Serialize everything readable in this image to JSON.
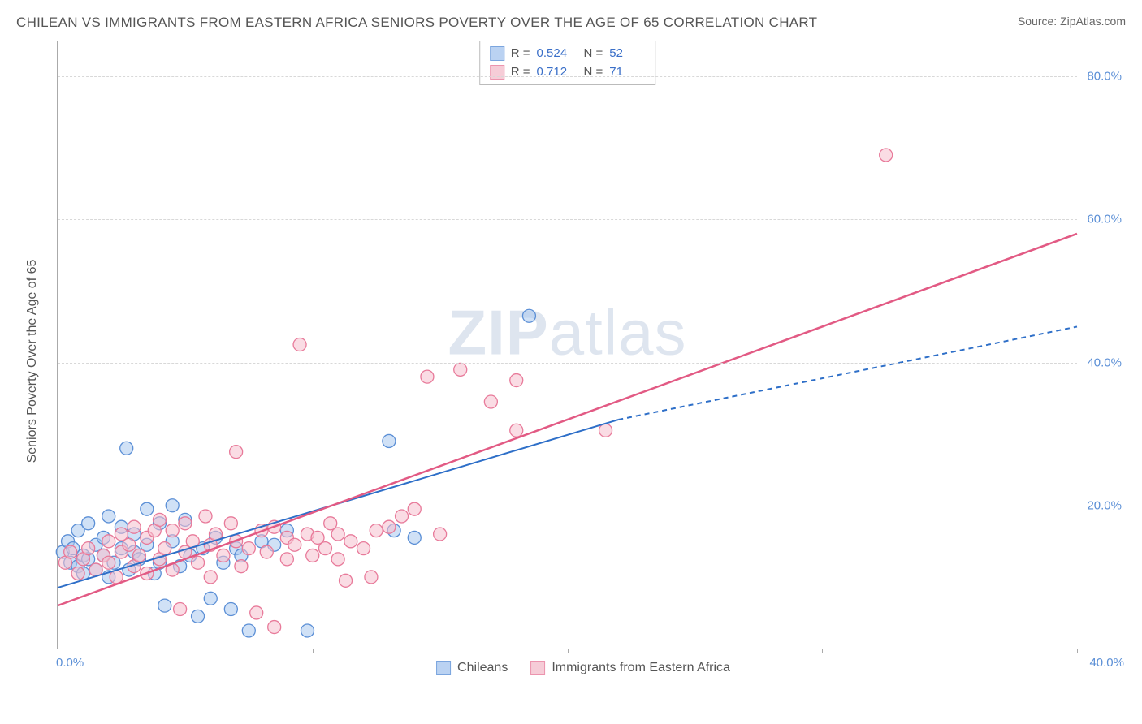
{
  "title": "CHILEAN VS IMMIGRANTS FROM EASTERN AFRICA SENIORS POVERTY OVER THE AGE OF 65 CORRELATION CHART",
  "source_label": "Source: ZipAtlas.com",
  "ylabel": "Seniors Poverty Over the Age of 65",
  "watermark": {
    "bold": "ZIP",
    "rest": "atlas"
  },
  "chart": {
    "type": "scatter-with-regression",
    "background_color": "#ffffff",
    "grid_color": "#d8d8d8",
    "axis_color": "#aaaaaa",
    "xlim": [
      0,
      40
    ],
    "ylim": [
      0,
      85
    ],
    "xtick_positions": [
      0,
      10,
      20,
      30,
      40
    ],
    "xtick_labels": [
      "0.0%",
      "",
      "",
      "",
      "40.0%"
    ],
    "ytick_positions": [
      20,
      40,
      60,
      80
    ],
    "ytick_labels": [
      "20.0%",
      "40.0%",
      "60.0%",
      "80.0%"
    ],
    "label_color": "#5b8fd6",
    "label_fontsize": 15,
    "title_color": "#555555",
    "title_fontsize": 17,
    "point_radius": 8,
    "point_opacity": 0.55,
    "series": [
      {
        "name": "Chileans",
        "color_fill": "#a9c8ef",
        "color_stroke": "#5b8fd6",
        "R": "0.524",
        "N": "52",
        "regression": {
          "x1": 0,
          "y1": 8.5,
          "x2": 22,
          "y2": 32,
          "dash_from_x": 22,
          "dash_to_x": 40,
          "dash_to_y": 45,
          "line_color": "#2e6fc8",
          "line_width": 2
        },
        "points": [
          [
            0.2,
            13.5
          ],
          [
            0.4,
            15.0
          ],
          [
            0.5,
            12.0
          ],
          [
            0.6,
            14.0
          ],
          [
            0.8,
            16.5
          ],
          [
            0.8,
            11.5
          ],
          [
            1.0,
            13.0
          ],
          [
            1.0,
            10.5
          ],
          [
            1.2,
            17.5
          ],
          [
            1.2,
            12.5
          ],
          [
            1.5,
            14.5
          ],
          [
            1.5,
            11.0
          ],
          [
            1.8,
            15.5
          ],
          [
            1.8,
            13.0
          ],
          [
            2.0,
            18.5
          ],
          [
            2.0,
            10.0
          ],
          [
            2.2,
            12.0
          ],
          [
            2.5,
            14.0
          ],
          [
            2.5,
            17.0
          ],
          [
            2.7,
            28.0
          ],
          [
            2.8,
            11.0
          ],
          [
            3.0,
            16.0
          ],
          [
            3.0,
            13.5
          ],
          [
            3.2,
            12.5
          ],
          [
            3.5,
            19.5
          ],
          [
            3.5,
            14.5
          ],
          [
            3.8,
            10.5
          ],
          [
            4.0,
            17.5
          ],
          [
            4.0,
            12.0
          ],
          [
            4.2,
            6.0
          ],
          [
            4.5,
            15.0
          ],
          [
            4.5,
            20.0
          ],
          [
            4.8,
            11.5
          ],
          [
            5.0,
            18.0
          ],
          [
            5.2,
            13.0
          ],
          [
            5.5,
            4.5
          ],
          [
            5.7,
            14.0
          ],
          [
            6.0,
            7.0
          ],
          [
            6.2,
            15.5
          ],
          [
            6.5,
            12.0
          ],
          [
            6.8,
            5.5
          ],
          [
            7.0,
            14.0
          ],
          [
            7.2,
            13.0
          ],
          [
            7.5,
            2.5
          ],
          [
            8.0,
            15.0
          ],
          [
            8.5,
            14.5
          ],
          [
            9.0,
            16.5
          ],
          [
            9.8,
            2.5
          ],
          [
            13.0,
            29.0
          ],
          [
            13.2,
            16.5
          ],
          [
            14.0,
            15.5
          ],
          [
            18.5,
            46.5
          ]
        ]
      },
      {
        "name": "Immigrants from Eastern Africa",
        "color_fill": "#f5c0ce",
        "color_stroke": "#e87a9a",
        "R": "0.712",
        "N": "71",
        "regression": {
          "x1": 0,
          "y1": 6.0,
          "x2": 40,
          "y2": 58,
          "line_color": "#e25a84",
          "line_width": 2.5
        },
        "points": [
          [
            0.3,
            12.0
          ],
          [
            0.5,
            13.5
          ],
          [
            0.8,
            10.5
          ],
          [
            1.0,
            12.5
          ],
          [
            1.2,
            14.0
          ],
          [
            1.5,
            11.0
          ],
          [
            1.8,
            13.0
          ],
          [
            2.0,
            15.0
          ],
          [
            2.0,
            12.0
          ],
          [
            2.3,
            10.0
          ],
          [
            2.5,
            13.5
          ],
          [
            2.5,
            16.0
          ],
          [
            2.8,
            14.5
          ],
          [
            3.0,
            11.5
          ],
          [
            3.0,
            17.0
          ],
          [
            3.2,
            13.0
          ],
          [
            3.5,
            15.5
          ],
          [
            3.5,
            10.5
          ],
          [
            3.8,
            16.5
          ],
          [
            4.0,
            12.5
          ],
          [
            4.0,
            18.0
          ],
          [
            4.2,
            14.0
          ],
          [
            4.5,
            11.0
          ],
          [
            4.5,
            16.5
          ],
          [
            4.8,
            5.5
          ],
          [
            5.0,
            13.5
          ],
          [
            5.0,
            17.5
          ],
          [
            5.3,
            15.0
          ],
          [
            5.5,
            12.0
          ],
          [
            5.8,
            18.5
          ],
          [
            6.0,
            14.5
          ],
          [
            6.0,
            10.0
          ],
          [
            6.2,
            16.0
          ],
          [
            6.5,
            13.0
          ],
          [
            6.8,
            17.5
          ],
          [
            7.0,
            27.5
          ],
          [
            7.0,
            15.0
          ],
          [
            7.2,
            11.5
          ],
          [
            7.5,
            14.0
          ],
          [
            7.8,
            5.0
          ],
          [
            8.0,
            16.5
          ],
          [
            8.2,
            13.5
          ],
          [
            8.5,
            3.0
          ],
          [
            8.5,
            17.0
          ],
          [
            9.0,
            15.5
          ],
          [
            9.0,
            12.5
          ],
          [
            9.3,
            14.5
          ],
          [
            9.5,
            42.5
          ],
          [
            9.8,
            16.0
          ],
          [
            10.0,
            13.0
          ],
          [
            10.2,
            15.5
          ],
          [
            10.5,
            14.0
          ],
          [
            10.7,
            17.5
          ],
          [
            11.0,
            12.5
          ],
          [
            11.0,
            16.0
          ],
          [
            11.3,
            9.5
          ],
          [
            11.5,
            15.0
          ],
          [
            12.0,
            14.0
          ],
          [
            12.3,
            10.0
          ],
          [
            12.5,
            16.5
          ],
          [
            13.5,
            18.5
          ],
          [
            14.0,
            19.5
          ],
          [
            14.5,
            38.0
          ],
          [
            15.0,
            16.0
          ],
          [
            15.8,
            39.0
          ],
          [
            17.0,
            34.5
          ],
          [
            18.0,
            37.5
          ],
          [
            18.0,
            30.5
          ],
          [
            21.5,
            30.5
          ],
          [
            32.5,
            69.0
          ],
          [
            13.0,
            17.0
          ]
        ]
      }
    ]
  },
  "legend": {
    "stats_rows": [
      {
        "series_idx": 0,
        "R_label": "R =",
        "N_label": "N ="
      },
      {
        "series_idx": 1,
        "R_label": "R =",
        "N_label": "N ="
      }
    ],
    "bottom_items": [
      "Chileans",
      "Immigrants from Eastern Africa"
    ]
  }
}
